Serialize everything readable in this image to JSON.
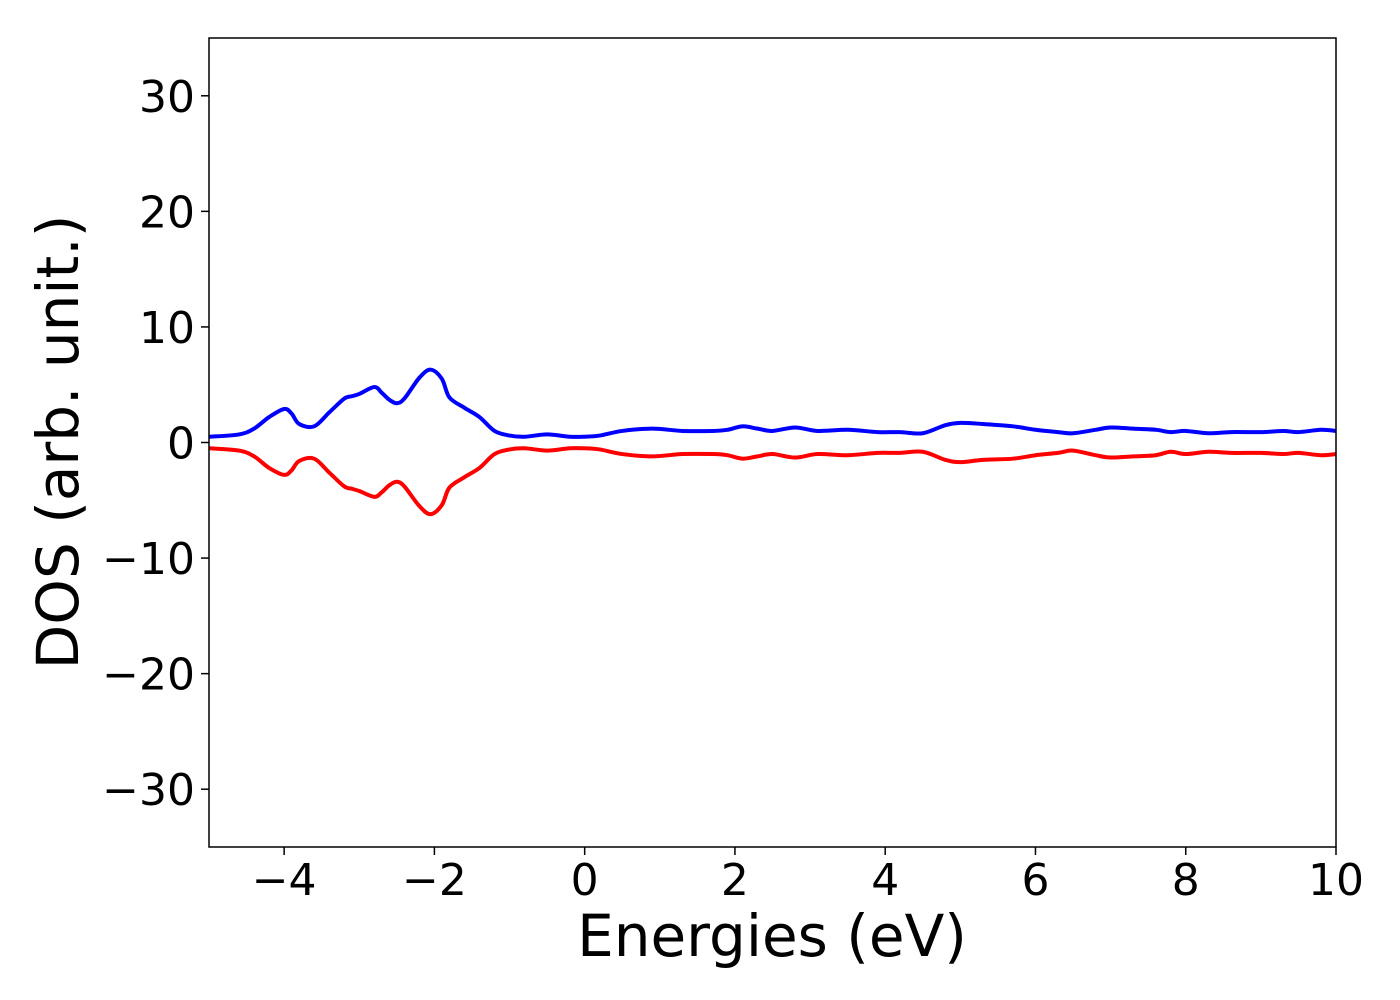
{
  "chart_data": {
    "type": "line",
    "title": "",
    "xlabel": "Energies (eV)",
    "ylabel": "DOS (arb. unit.)",
    "xlim": [
      -5,
      10
    ],
    "ylim": [
      -35,
      35
    ],
    "xticks": [
      -4,
      -2,
      0,
      2,
      4,
      6,
      8,
      10
    ],
    "xtick_labels": [
      "−4",
      "−2",
      "0",
      "2",
      "4",
      "6",
      "8",
      "10"
    ],
    "yticks": [
      -30,
      -20,
      -10,
      0,
      10,
      20,
      30
    ],
    "ytick_labels": [
      "−30",
      "−20",
      "−10",
      "0",
      "10",
      "20",
      "30"
    ],
    "grid": false,
    "legend": "none",
    "series": [
      {
        "color": "#0000ff",
        "x": [
          -5.0,
          -4.6,
          -4.4,
          -4.2,
          -4.0,
          -3.9,
          -3.8,
          -3.6,
          -3.4,
          -3.2,
          -3.1,
          -3.0,
          -2.8,
          -2.7,
          -2.6,
          -2.5,
          -2.4,
          -2.2,
          -2.05,
          -1.9,
          -1.8,
          -1.6,
          -1.4,
          -1.2,
          -1.0,
          -0.8,
          -0.5,
          -0.2,
          0.0,
          0.2,
          0.5,
          0.9,
          1.3,
          1.7,
          1.9,
          2.1,
          2.3,
          2.5,
          2.8,
          3.1,
          3.5,
          3.9,
          4.2,
          4.5,
          4.8,
          5.0,
          5.3,
          5.7,
          6.0,
          6.3,
          6.5,
          6.8,
          7.0,
          7.3,
          7.6,
          7.8,
          8.0,
          8.3,
          8.6,
          9.0,
          9.3,
          9.5,
          9.8,
          10.0
        ],
        "y": [
          0.5,
          0.7,
          1.2,
          2.2,
          2.9,
          2.5,
          1.6,
          1.4,
          2.6,
          3.8,
          4.0,
          4.2,
          4.8,
          4.3,
          3.7,
          3.4,
          3.8,
          5.6,
          6.3,
          5.5,
          3.9,
          3.0,
          2.2,
          1.0,
          0.6,
          0.5,
          0.7,
          0.5,
          0.5,
          0.6,
          1.0,
          1.2,
          1.0,
          1.0,
          1.1,
          1.4,
          1.2,
          1.0,
          1.3,
          1.0,
          1.1,
          0.9,
          0.9,
          0.8,
          1.5,
          1.7,
          1.6,
          1.4,
          1.1,
          0.9,
          0.8,
          1.1,
          1.3,
          1.2,
          1.1,
          0.9,
          1.0,
          0.8,
          0.9,
          0.9,
          1.0,
          0.9,
          1.1,
          1.0
        ]
      },
      {
        "color": "#ff0000",
        "x": [
          -5.0,
          -4.6,
          -4.4,
          -4.2,
          -4.0,
          -3.9,
          -3.8,
          -3.6,
          -3.4,
          -3.2,
          -3.1,
          -3.0,
          -2.8,
          -2.7,
          -2.6,
          -2.5,
          -2.4,
          -2.2,
          -2.05,
          -1.9,
          -1.8,
          -1.6,
          -1.4,
          -1.2,
          -1.0,
          -0.8,
          -0.5,
          -0.2,
          0.0,
          0.2,
          0.5,
          0.9,
          1.3,
          1.7,
          1.9,
          2.1,
          2.3,
          2.5,
          2.8,
          3.1,
          3.5,
          3.9,
          4.2,
          4.5,
          4.8,
          5.0,
          5.3,
          5.7,
          6.0,
          6.3,
          6.5,
          6.8,
          7.0,
          7.3,
          7.6,
          7.8,
          8.0,
          8.3,
          8.6,
          9.0,
          9.3,
          9.5,
          9.8,
          10.0
        ],
        "y": [
          -0.5,
          -0.7,
          -1.2,
          -2.2,
          -2.8,
          -2.4,
          -1.6,
          -1.4,
          -2.6,
          -3.8,
          -4.0,
          -4.2,
          -4.7,
          -4.3,
          -3.7,
          -3.4,
          -3.8,
          -5.5,
          -6.2,
          -5.4,
          -3.9,
          -3.0,
          -2.2,
          -1.0,
          -0.6,
          -0.5,
          -0.7,
          -0.5,
          -0.5,
          -0.6,
          -1.0,
          -1.2,
          -1.0,
          -1.0,
          -1.1,
          -1.4,
          -1.2,
          -1.0,
          -1.3,
          -1.0,
          -1.1,
          -0.9,
          -0.9,
          -0.8,
          -1.5,
          -1.7,
          -1.5,
          -1.4,
          -1.1,
          -0.9,
          -0.7,
          -1.1,
          -1.3,
          -1.2,
          -1.1,
          -0.8,
          -1.0,
          -0.8,
          -0.9,
          -0.9,
          -1.0,
          -0.9,
          -1.1,
          -1.0
        ]
      }
    ]
  }
}
